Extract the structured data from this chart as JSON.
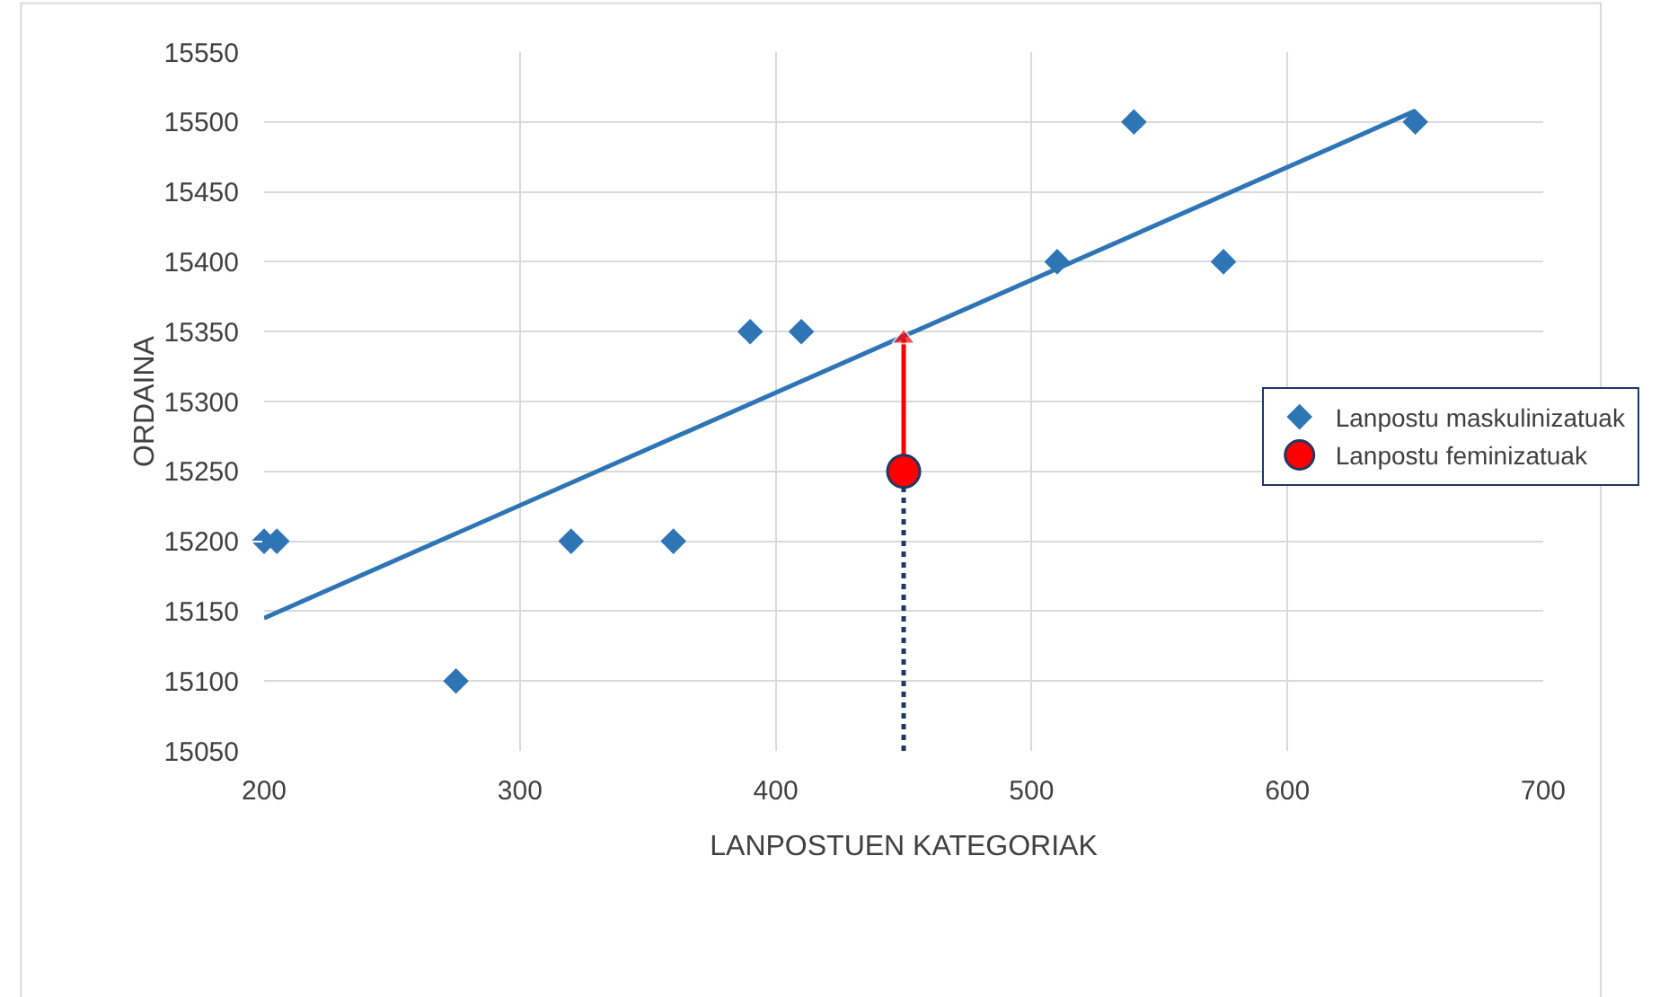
{
  "chart_data": {
    "type": "scatter",
    "xlabel": "LANPOSTUEN KATEGORIAK",
    "ylabel": "ORDAINA",
    "xlim": [
      200,
      700
    ],
    "xticks": [
      200,
      300,
      400,
      500,
      600,
      700
    ],
    "ylim": [
      15050,
      15550
    ],
    "yticks": [
      15050,
      15100,
      15150,
      15200,
      15250,
      15300,
      15350,
      15400,
      15450,
      15500,
      15550
    ],
    "grid": true,
    "legend": "right",
    "series": [
      {
        "name": "Lanpostu maskulinizatuak",
        "marker": "diamond",
        "color": "#2e75b6",
        "x": [
          200,
          205,
          275,
          320,
          360,
          390,
          410,
          510,
          540,
          575,
          650
        ],
        "values": [
          15200,
          15200,
          15100,
          15200,
          15200,
          15350,
          15350,
          15400,
          15500,
          15400,
          15500
        ]
      },
      {
        "type": "line",
        "marker": "none",
        "line_style": "solid",
        "color": "#2e75b6",
        "x": [
          200,
          650
        ],
        "values": [
          15145,
          15508
        ]
      },
      {
        "type": "line",
        "marker": "none",
        "line_style": "dotted",
        "color": "#1f3864",
        "x": [
          450,
          450
        ],
        "values": [
          15050,
          15250
        ]
      },
      {
        "type": "line",
        "marker": "triangle",
        "line_style": "solid",
        "color": "#ff0000",
        "x": [
          450,
          450
        ],
        "values": [
          15250,
          15345
        ]
      },
      {
        "name": "Lanpostu feminizatuak",
        "marker": "circle",
        "color": "#ff0000",
        "x": [
          450
        ],
        "values": [
          15250
        ]
      }
    ]
  }
}
